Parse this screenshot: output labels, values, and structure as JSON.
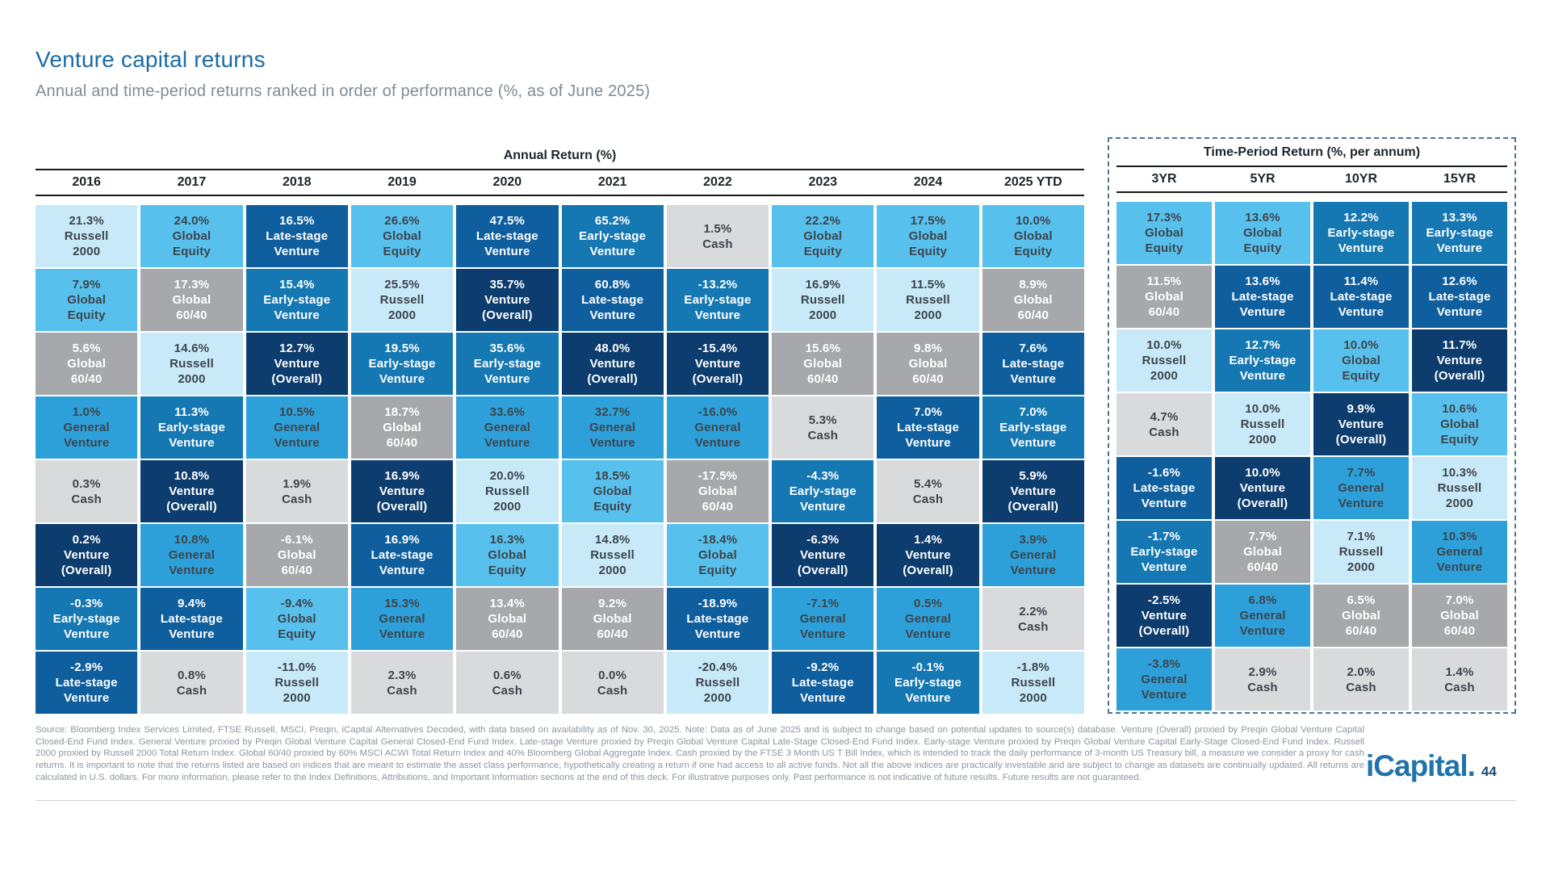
{
  "page": {
    "title": "Venture capital returns",
    "subtitle": "Annual and time-period returns ranked in order of performance (%, as of June 2025)",
    "logo_text": "iCapital",
    "logo_dot": ".",
    "page_number": "44",
    "footer": "Source: Bloomberg Index Services Limited, FTSE Russell, MSCI, Preqin, iCapital Alternatives Decoded, with data based on availability as of Nov. 30, 2025. Note: Data as of June 2025 and is subject to change based on potential updates to source(s) database. Venture (Overall) proxied by Preqin Global Venture Capital Closed-End Fund Index. General Venture proxied by Preqin Global Venture Capital General Closed-End Fund Index. Late-stage Venture proxied by Preqin Global Venture Capital Late-Stage Closed-End Fund Index. Early-stage Venture proxied by Preqin Global Venture Capital Early-Stage Closed-End Fund Index. Russell 2000 proxied by Russell 2000 Total Return Index. Global 60/40 proxied by 60% MSCI ACWI Total Return Index and 40% Bloomberg Global Aggregate Index. Cash proxied by the FTSE 3 Month US T Bill Index, which is intended to track the daily performance of 3-month US Treasury bill, a measure we consider a proxy for cash returns. It is important to note that the returns listed are based on indices that are meant to estimate the asset class performance, hypothetically creating a return if one had access to all active funds. Not all the above indices are practically investable and are subject to change as datasets are continually updated. All returns are calculated in U.S. dollars. For more information, please refer to the Index Definitions, Attributions, and Important Information sections at the end of this deck. For illustrative purposes only. Past performance is not indicative of future results. Future results are not guaranteed."
  },
  "asset_classes": {
    "Russell 2000": {
      "bg": "#c8e9f8",
      "fg": "#3d454c",
      "label_lines": [
        "Russell",
        "2000"
      ]
    },
    "Global Equity": {
      "bg": "#58c0ed",
      "fg": "#3d454c",
      "label_lines": [
        "Global",
        "Equity"
      ]
    },
    "General Venture": {
      "bg": "#2da0da",
      "fg": "#3d454c",
      "label_lines": [
        "General",
        "Venture"
      ]
    },
    "Early-stage Venture": {
      "bg": "#1678b2",
      "fg": "#ffffff",
      "label_lines": [
        "Early-stage",
        "Venture"
      ]
    },
    "Late-stage Venture": {
      "bg": "#0f5f9f",
      "fg": "#ffffff",
      "label_lines": [
        "Late-stage",
        "Venture"
      ]
    },
    "Venture (Overall)": {
      "bg": "#0d3d6e",
      "fg": "#ffffff",
      "label_lines": [
        "Venture",
        "(Overall)"
      ]
    },
    "Global 60/40": {
      "bg": "#a6a8ab",
      "fg": "#ffffff",
      "label_lines": [
        "Global",
        "60/40"
      ]
    },
    "Cash": {
      "bg": "#d8dadc",
      "fg": "#3d454c",
      "label_lines": [
        "Cash"
      ]
    }
  },
  "chart_data": {
    "type": "table",
    "subtype": "ranked-return-quilt",
    "unit": "percent",
    "annual": {
      "title": "Annual Return (%)",
      "columns": [
        {
          "label": "2016",
          "cells": [
            [
              "21.3%",
              "Russell 2000"
            ],
            [
              "7.9%",
              "Global Equity"
            ],
            [
              "5.6%",
              "Global 60/40"
            ],
            [
              "1.0%",
              "General Venture"
            ],
            [
              "0.3%",
              "Cash"
            ],
            [
              "0.2%",
              "Venture (Overall)"
            ],
            [
              "-0.3%",
              "Early-stage Venture"
            ],
            [
              "-2.9%",
              "Late-stage Venture"
            ]
          ]
        },
        {
          "label": "2017",
          "cells": [
            [
              "24.0%",
              "Global Equity"
            ],
            [
              "17.3%",
              "Global 60/40"
            ],
            [
              "14.6%",
              "Russell 2000"
            ],
            [
              "11.3%",
              "Early-stage Venture"
            ],
            [
              "10.8%",
              "Venture (Overall)"
            ],
            [
              "10.8%",
              "General Venture"
            ],
            [
              "9.4%",
              "Late-stage Venture"
            ],
            [
              "0.8%",
              "Cash"
            ]
          ]
        },
        {
          "label": "2018",
          "cells": [
            [
              "16.5%",
              "Late-stage Venture"
            ],
            [
              "15.4%",
              "Early-stage Venture"
            ],
            [
              "12.7%",
              "Venture (Overall)"
            ],
            [
              "10.5%",
              "General Venture"
            ],
            [
              "1.9%",
              "Cash"
            ],
            [
              "-6.1%",
              "Global 60/40"
            ],
            [
              "-9.4%",
              "Global Equity"
            ],
            [
              "-11.0%",
              "Russell 2000"
            ]
          ]
        },
        {
          "label": "2019",
          "cells": [
            [
              "26.6%",
              "Global Equity"
            ],
            [
              "25.5%",
              "Russell 2000"
            ],
            [
              "19.5%",
              "Early-stage Venture"
            ],
            [
              "18.7%",
              "Global 60/40"
            ],
            [
              "16.9%",
              "Venture (Overall)"
            ],
            [
              "16.9%",
              "Late-stage Venture"
            ],
            [
              "15.3%",
              "General Venture"
            ],
            [
              "2.3%",
              "Cash"
            ]
          ]
        },
        {
          "label": "2020",
          "cells": [
            [
              "47.5%",
              "Late-stage Venture"
            ],
            [
              "35.7%",
              "Venture (Overall)"
            ],
            [
              "35.6%",
              "Early-stage Venture"
            ],
            [
              "33.6%",
              "General Venture"
            ],
            [
              "20.0%",
              "Russell 2000"
            ],
            [
              "16.3%",
              "Global Equity"
            ],
            [
              "13.4%",
              "Global 60/40"
            ],
            [
              "0.6%",
              "Cash"
            ]
          ]
        },
        {
          "label": "2021",
          "cells": [
            [
              "65.2%",
              "Early-stage Venture"
            ],
            [
              "60.8%",
              "Late-stage Venture"
            ],
            [
              "48.0%",
              "Venture (Overall)"
            ],
            [
              "32.7%",
              "General Venture"
            ],
            [
              "18.5%",
              "Global Equity"
            ],
            [
              "14.8%",
              "Russell 2000"
            ],
            [
              "9.2%",
              "Global 60/40"
            ],
            [
              "0.0%",
              "Cash"
            ]
          ]
        },
        {
          "label": "2022",
          "cells": [
            [
              "1.5%",
              "Cash"
            ],
            [
              "-13.2%",
              "Early-stage Venture"
            ],
            [
              "-15.4%",
              "Venture (Overall)"
            ],
            [
              "-16.0%",
              "General Venture"
            ],
            [
              "-17.5%",
              "Global 60/40"
            ],
            [
              "-18.4%",
              "Global Equity"
            ],
            [
              "-18.9%",
              "Late-stage Venture"
            ],
            [
              "-20.4%",
              "Russell 2000"
            ]
          ]
        },
        {
          "label": "2023",
          "cells": [
            [
              "22.2%",
              "Global Equity"
            ],
            [
              "16.9%",
              "Russell 2000"
            ],
            [
              "15.6%",
              "Global 60/40"
            ],
            [
              "5.3%",
              "Cash"
            ],
            [
              "-4.3%",
              "Early-stage Venture"
            ],
            [
              "-6.3%",
              "Venture (Overall)"
            ],
            [
              "-7.1%",
              "General Venture"
            ],
            [
              "-9.2%",
              "Late-stage Venture"
            ]
          ]
        },
        {
          "label": "2024",
          "cells": [
            [
              "17.5%",
              "Global Equity"
            ],
            [
              "11.5%",
              "Russell 2000"
            ],
            [
              "9.8%",
              "Global 60/40"
            ],
            [
              "7.0%",
              "Late-stage Venture"
            ],
            [
              "5.4%",
              "Cash"
            ],
            [
              "1.4%",
              "Venture (Overall)"
            ],
            [
              "0.5%",
              "General Venture"
            ],
            [
              "-0.1%",
              "Early-stage Venture"
            ]
          ]
        },
        {
          "label": "2025 YTD",
          "cells": [
            [
              "10.0%",
              "Global Equity"
            ],
            [
              "8.9%",
              "Global 60/40"
            ],
            [
              "7.6%",
              "Late-stage Venture"
            ],
            [
              "7.0%",
              "Early-stage Venture"
            ],
            [
              "5.9%",
              "Venture (Overall)"
            ],
            [
              "3.9%",
              "General Venture"
            ],
            [
              "2.2%",
              "Cash"
            ],
            [
              "-1.8%",
              "Russell 2000"
            ]
          ]
        }
      ]
    },
    "time_period": {
      "title": "Time-Period Return (%, per annum)",
      "columns": [
        {
          "label": "3YR",
          "cells": [
            [
              "17.3%",
              "Global Equity"
            ],
            [
              "11.5%",
              "Global 60/40"
            ],
            [
              "10.0%",
              "Russell 2000"
            ],
            [
              "4.7%",
              "Cash"
            ],
            [
              "-1.6%",
              "Late-stage Venture"
            ],
            [
              "-1.7%",
              "Early-stage Venture"
            ],
            [
              "-2.5%",
              "Venture (Overall)"
            ],
            [
              "-3.8%",
              "General Venture"
            ]
          ]
        },
        {
          "label": "5YR",
          "cells": [
            [
              "13.6%",
              "Global Equity"
            ],
            [
              "13.6%",
              "Late-stage Venture"
            ],
            [
              "12.7%",
              "Early-stage Venture"
            ],
            [
              "10.0%",
              "Russell 2000"
            ],
            [
              "10.0%",
              "Venture (Overall)"
            ],
            [
              "7.7%",
              "Global 60/40"
            ],
            [
              "6.8%",
              "General Venture"
            ],
            [
              "2.9%",
              "Cash"
            ]
          ]
        },
        {
          "label": "10YR",
          "cells": [
            [
              "12.2%",
              "Early-stage Venture"
            ],
            [
              "11.4%",
              "Late-stage Venture"
            ],
            [
              "10.0%",
              "Global Equity"
            ],
            [
              "9.9%",
              "Venture (Overall)"
            ],
            [
              "7.7%",
              "General Venture"
            ],
            [
              "7.1%",
              "Russell 2000"
            ],
            [
              "6.5%",
              "Global 60/40"
            ],
            [
              "2.0%",
              "Cash"
            ]
          ]
        },
        {
          "label": "15YR",
          "cells": [
            [
              "13.3%",
              "Early-stage Venture"
            ],
            [
              "12.6%",
              "Late-stage Venture"
            ],
            [
              "11.7%",
              "Venture (Overall)"
            ],
            [
              "10.6%",
              "Global Equity"
            ],
            [
              "10.3%",
              "Russell 2000"
            ],
            [
              "10.3%",
              "General Venture"
            ],
            [
              "7.0%",
              "Global 60/40"
            ],
            [
              "1.4%",
              "Cash"
            ]
          ]
        }
      ]
    }
  }
}
